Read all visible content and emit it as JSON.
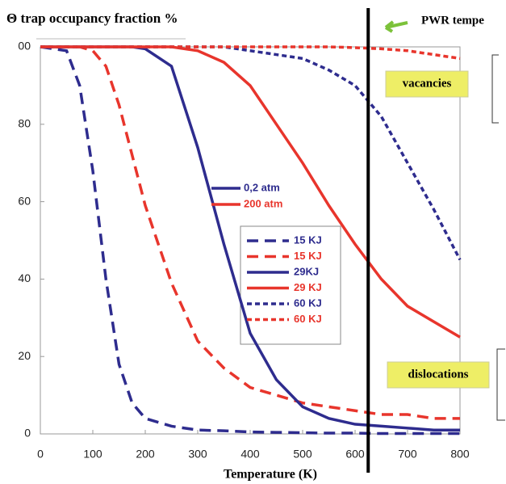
{
  "chart_data": {
    "type": "line",
    "title": "Θ trap occupancy fraction %",
    "corner_note": "PWR tempe",
    "x_label": "Temperature (K)",
    "x": [
      0,
      50,
      75,
      100,
      125,
      150,
      175,
      200,
      250,
      300,
      350,
      400,
      450,
      500,
      550,
      600,
      650,
      700,
      750,
      800
    ],
    "xlim": [
      0,
      800
    ],
    "xticks": [
      0,
      100,
      200,
      300,
      400,
      500,
      600,
      700,
      800
    ],
    "ylim": [
      0,
      100
    ],
    "yticks": [
      0,
      20,
      40,
      60,
      80,
      {
        "value": 100,
        "label": "00"
      }
    ],
    "vline": 625,
    "pressure_legend": [
      {
        "name": "0,2  atm",
        "color": "#2e2c8e"
      },
      {
        "name": "200 atm",
        "color": "#e8352c"
      }
    ],
    "annotations": [
      "vacancies",
      "dislocations"
    ],
    "series": [
      {
        "name": "15 KJ",
        "color": "#2e2c8e",
        "dash": "dashed",
        "values": [
          100,
          99,
          90,
          68,
          40,
          18,
          8,
          4,
          2,
          1,
          0.8,
          0.5,
          0.4,
          0.3,
          0.2,
          0.2,
          0.1,
          0.1,
          0.1,
          0.1
        ]
      },
      {
        "name": "15 KJ",
        "color": "#e8352c",
        "dash": "dashed",
        "values": [
          100,
          100,
          100,
          99,
          95,
          85,
          72,
          59,
          39,
          24,
          17,
          12,
          10,
          8,
          7,
          6,
          5,
          5,
          4,
          4
        ]
      },
      {
        "name": "29KJ",
        "color": "#2e2c8e",
        "dash": "solid",
        "values": [
          100,
          100,
          100,
          100,
          100,
          100,
          100,
          99.5,
          95,
          74,
          49,
          26,
          14,
          7,
          4,
          2.5,
          2,
          1.5,
          1,
          1
        ]
      },
      {
        "name": "29 KJ",
        "color": "#e8352c",
        "dash": "solid",
        "values": [
          100,
          100,
          100,
          100,
          100,
          100,
          100,
          100,
          100,
          99,
          96,
          90,
          80,
          70,
          59,
          49,
          40,
          33,
          29,
          25
        ]
      },
      {
        "name": "60 KJ",
        "color": "#2e2c8e",
        "dash": "dotted",
        "values": [
          100,
          100,
          100,
          100,
          100,
          100,
          100,
          100,
          100,
          100,
          100,
          99,
          98,
          97,
          94,
          90,
          82,
          70,
          58,
          45
        ]
      },
      {
        "name": "60 KJ",
        "color": "#e8352c",
        "dash": "dotted",
        "values": [
          100,
          100,
          100,
          100,
          100,
          100,
          100,
          100,
          100,
          100,
          100,
          100,
          100,
          100,
          100,
          99.8,
          99.5,
          99,
          98,
          97
        ]
      }
    ]
  }
}
